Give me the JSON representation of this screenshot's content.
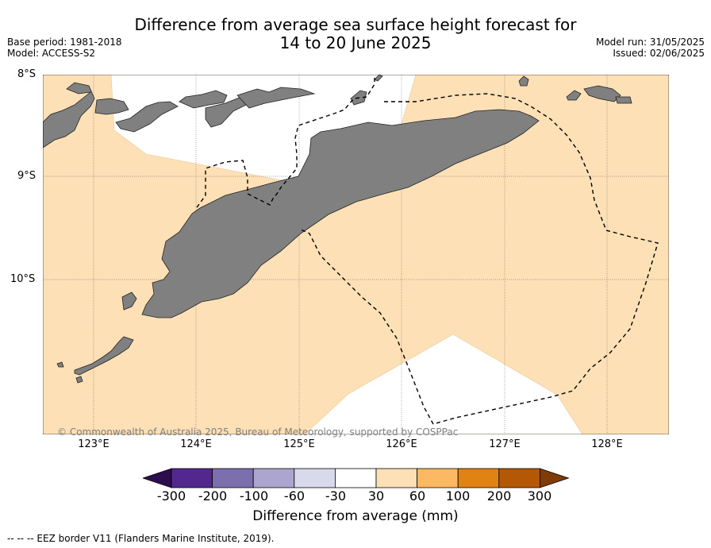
{
  "title_line1": "Difference from average sea surface height forecast for",
  "title_line2": "14 to 20 June 2025",
  "base_period": "Base period: 1981-2018",
  "model": "Model: ACCESS-S2",
  "model_run": "Model run: 31/05/2025",
  "issued": "Issued: 02/06/2025",
  "lat_labels": [
    "8°S",
    "9°S",
    "10°S"
  ],
  "lon_labels": [
    "123°E",
    "124°E",
    "125°E",
    "126°E",
    "127°E",
    "128°E"
  ],
  "copyright": "© Commonwealth of Australia 2025, Bureau of Meteorology, supported by COSPPac",
  "colorbar": {
    "ticks": [
      "-300",
      "-200",
      "-100",
      "-60",
      "-30",
      "30",
      "60",
      "100",
      "200",
      "300"
    ],
    "colors": [
      "#2d0d4e",
      "#54278f",
      "#7b6fae",
      "#aba5cf",
      "#d9d9ec",
      "#ffffff",
      "#fee0b6",
      "#fdb863",
      "#e08214",
      "#b35806",
      "#7f3b08"
    ],
    "label": "Difference from average (mm)"
  },
  "footnote": "--  --  -- EEZ border V11 (Flanders Marine Institute, 2019).",
  "map": {
    "ocean_anomaly_color": "#fee0b6",
    "land_color": "#808080",
    "neutral_color": "#ffffff"
  }
}
